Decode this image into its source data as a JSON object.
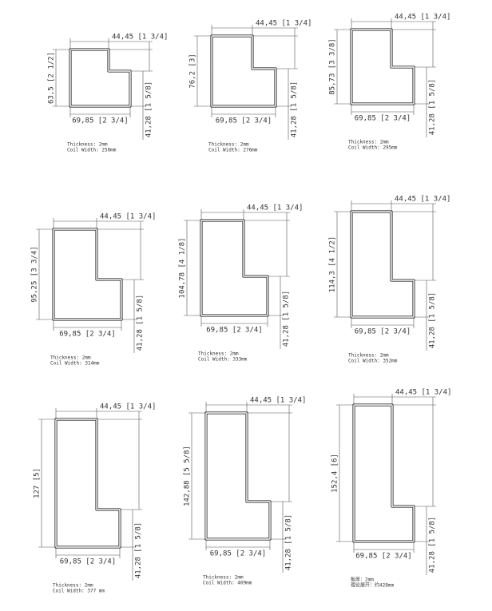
{
  "profiles": [
    {
      "top": "44,45 [1 3/4]",
      "height": "63,5 [2 1/2]",
      "right": "41,28 [1 5/8]",
      "bottom": "69,85 [2 3/4]",
      "thickness": "Thickness: 2mm",
      "coil": "Coil Width: 250mm"
    },
    {
      "top": "44,45 [1 3/4]",
      "height": "76,2 [3]",
      "right": "41,28 [1 5/8]",
      "bottom": "69,85 [2 3/4]",
      "thickness": "Thickness: 2mm",
      "coil": "Coil Width: 276mm"
    },
    {
      "top": "44,45 [1 3/4]",
      "height": "85,73 [3 3/8]",
      "right": "41,28 [1 5/8]",
      "bottom": "69,85 [2 3/4]",
      "thickness": "Thickness: 2mm",
      "coil": "Coil Width: 295mm"
    },
    {
      "top": "44,45 [1 3/4]",
      "height": "95,25 [3 3/4]",
      "right": "41,28 [1 5/8]",
      "bottom": "69,85 [2 3/4]",
      "thickness": "Thickness: 2mm",
      "coil": "Coil Width: 314mm"
    },
    {
      "top": "44,45 [1 3/4]",
      "height": "104,78 [4 1/8]",
      "right": "41,28 [1 5/8]",
      "bottom": "69,85 [2 3/4]",
      "thickness": "Thickness: 2mm",
      "coil": "Coil Width: 333mm"
    },
    {
      "top": "44,45 [1 3/4]",
      "height": "114,3 [4 1/2]",
      "right": "41,28 [1 5/8]",
      "bottom": "69,85 [2 3/4]",
      "thickness": "Thickness: 2mm",
      "coil": "Coil Width: 352mm"
    },
    {
      "top": "44,45 [1 3/4]",
      "height": "127 [5]",
      "right": "41,28 [1 5/8]",
      "bottom": "69,85 [2 3/4]",
      "thickness": "Thickness: 2mm",
      "coil": "Coil Width: 377 mm"
    },
    {
      "top": "44,45 [1 3/4]",
      "height": "142,88 [5 5/8]",
      "right": "41,28 [1 5/8]",
      "bottom": "69,85 [2 3/4]",
      "thickness": "Thickness: 2mm",
      "coil": "Coil Width: 409mm"
    },
    {
      "top": "44,45 [1 3/4]",
      "height": "152,4 [6]",
      "right": "41,28 [1 5/8]",
      "bottom": "69,85 [2 3/4]",
      "thickness": "板厚：2mm",
      "coil": "理论展开：约428mm"
    }
  ]
}
